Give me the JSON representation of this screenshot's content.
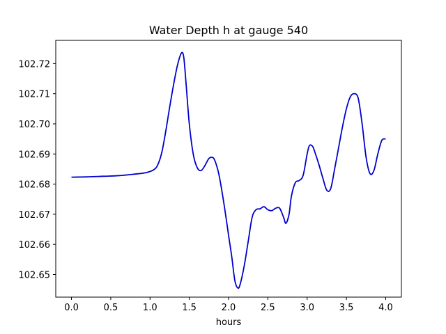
{
  "chart_data": {
    "type": "line",
    "title": "Water Depth h at gauge 540",
    "xlabel": "hours",
    "ylabel": "",
    "xlim": [
      -0.2,
      4.2
    ],
    "ylim": [
      102.6425,
      102.7277
    ],
    "grid": false,
    "x_ticks": [
      {
        "value": 0.0,
        "label": "0.0"
      },
      {
        "value": 0.5,
        "label": "0.5"
      },
      {
        "value": 1.0,
        "label": "1.0"
      },
      {
        "value": 1.5,
        "label": "1.5"
      },
      {
        "value": 2.0,
        "label": "2.0"
      },
      {
        "value": 2.5,
        "label": "2.5"
      },
      {
        "value": 3.0,
        "label": "3.0"
      },
      {
        "value": 3.5,
        "label": "3.5"
      },
      {
        "value": 4.0,
        "label": "4.0"
      }
    ],
    "y_ticks": [
      {
        "value": 102.65,
        "label": "102.65"
      },
      {
        "value": 102.66,
        "label": "102.66"
      },
      {
        "value": 102.67,
        "label": "102.67"
      },
      {
        "value": 102.68,
        "label": "102.68"
      },
      {
        "value": 102.69,
        "label": "102.69"
      },
      {
        "value": 102.7,
        "label": "102.70"
      },
      {
        "value": 102.71,
        "label": "102.71"
      },
      {
        "value": 102.72,
        "label": "102.72"
      }
    ],
    "series": [
      {
        "color": "#0000cc",
        "x": [
          0.0,
          0.2,
          0.4,
          0.6,
          0.8,
          0.95,
          1.05,
          1.1,
          1.15,
          1.2,
          1.25,
          1.3,
          1.35,
          1.4,
          1.43,
          1.46,
          1.5,
          1.55,
          1.6,
          1.65,
          1.7,
          1.75,
          1.8,
          1.83,
          1.87,
          1.9,
          1.95,
          2.0,
          2.04,
          2.08,
          2.12,
          2.15,
          2.2,
          2.25,
          2.3,
          2.35,
          2.4,
          2.45,
          2.5,
          2.55,
          2.6,
          2.65,
          2.7,
          2.73,
          2.77,
          2.8,
          2.85,
          2.9,
          2.95,
          3.0,
          3.03,
          3.07,
          3.1,
          3.15,
          3.2,
          3.25,
          3.3,
          3.35,
          3.4,
          3.45,
          3.5,
          3.55,
          3.6,
          3.65,
          3.7,
          3.75,
          3.8,
          3.85,
          3.9,
          3.95,
          4.0
        ],
        "y": [
          102.6823,
          102.6824,
          102.6826,
          102.6828,
          102.6833,
          102.6838,
          102.6848,
          102.6865,
          102.6905,
          102.6975,
          102.7055,
          102.713,
          102.7195,
          102.7235,
          102.722,
          102.713,
          102.7,
          102.69,
          102.6855,
          102.6845,
          102.6862,
          102.6885,
          102.6888,
          102.6875,
          102.684,
          102.68,
          102.672,
          102.663,
          102.656,
          102.648,
          102.6455,
          102.647,
          102.653,
          102.661,
          102.669,
          102.6715,
          102.6718,
          102.6725,
          102.6715,
          102.6712,
          102.672,
          102.672,
          102.669,
          102.667,
          102.67,
          102.676,
          102.6805,
          102.6812,
          102.683,
          102.69,
          102.6928,
          102.6925,
          102.6905,
          102.6865,
          102.682,
          102.678,
          102.6785,
          102.685,
          102.692,
          102.699,
          102.705,
          102.709,
          102.71,
          102.7085,
          102.7,
          102.689,
          102.6835,
          102.6845,
          102.69,
          102.6945,
          102.695
        ]
      }
    ]
  }
}
